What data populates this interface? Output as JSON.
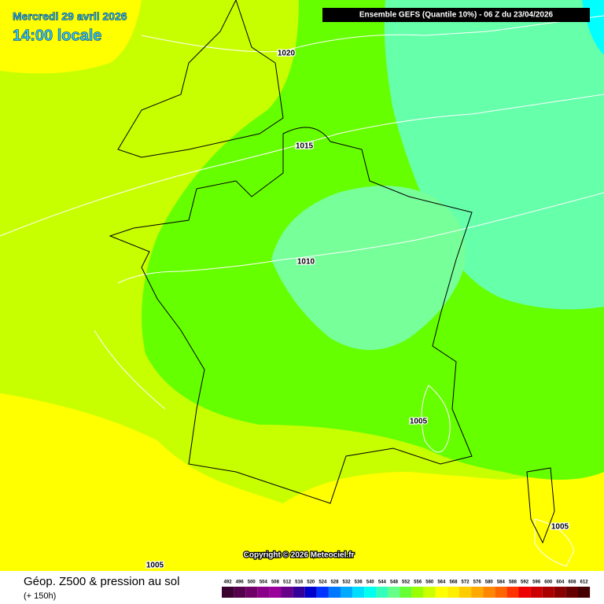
{
  "header": {
    "date": "Mercredi 29 avril 2026",
    "time": "14:00 locale",
    "model": "Ensemble GEFS  (Quantile 10%) - 06 Z du 23/04/2026"
  },
  "isobars": [
    {
      "label": "1020"
    },
    {
      "label": "1015"
    },
    {
      "label": "1010"
    },
    {
      "label": "1005"
    },
    {
      "label": "1005"
    },
    {
      "label": "1005"
    }
  ],
  "copyright": "Copyright © 2026 Meteociel.fr",
  "footer": {
    "title": "Géop. Z500 & pression au sol",
    "lead": "(+ 150h)"
  },
  "legend": {
    "items": [
      {
        "label": "492",
        "color": "#3a0030"
      },
      {
        "label": "496",
        "color": "#55004a"
      },
      {
        "label": "500",
        "color": "#700066"
      },
      {
        "label": "504",
        "color": "#8a0088"
      },
      {
        "label": "508",
        "color": "#9a009a"
      },
      {
        "label": "512",
        "color": "#66008a"
      },
      {
        "label": "516",
        "color": "#33009a"
      },
      {
        "label": "520",
        "color": "#0000cc"
      },
      {
        "label": "524",
        "color": "#0033ff"
      },
      {
        "label": "528",
        "color": "#0077ff"
      },
      {
        "label": "532",
        "color": "#00aaff"
      },
      {
        "label": "536",
        "color": "#00ddff"
      },
      {
        "label": "540",
        "color": "#00ffee"
      },
      {
        "label": "544",
        "color": "#33ffbb"
      },
      {
        "label": "548",
        "color": "#66ff88"
      },
      {
        "label": "552",
        "color": "#66ff33"
      },
      {
        "label": "556",
        "color": "#99ff00"
      },
      {
        "label": "560",
        "color": "#ccff00"
      },
      {
        "label": "564",
        "color": "#ffff00"
      },
      {
        "label": "568",
        "color": "#ffee00"
      },
      {
        "label": "572",
        "color": "#ffcc00"
      },
      {
        "label": "576",
        "color": "#ffaa00"
      },
      {
        "label": "580",
        "color": "#ff8800"
      },
      {
        "label": "584",
        "color": "#ff6600"
      },
      {
        "label": "588",
        "color": "#ff3300"
      },
      {
        "label": "592",
        "color": "#ee0000"
      },
      {
        "label": "596",
        "color": "#cc0000"
      },
      {
        "label": "600",
        "color": "#aa0000"
      },
      {
        "label": "604",
        "color": "#880000"
      },
      {
        "label": "608",
        "color": "#660000"
      },
      {
        "label": "612",
        "color": "#440000"
      }
    ]
  }
}
